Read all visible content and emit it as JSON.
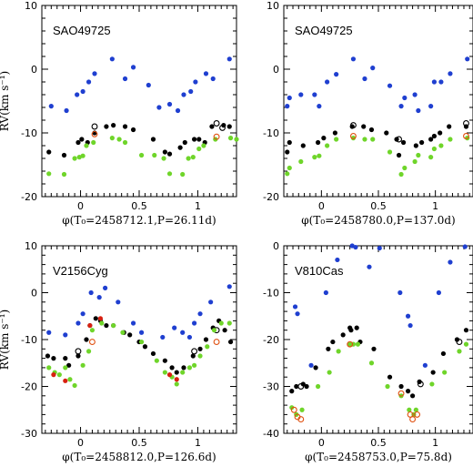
{
  "chart_data": [
    {
      "type": "scatter",
      "title": "SAO49725",
      "xlabel": "φ(T₀=2458712.1,P=26.11d)",
      "ylabel": "RV(km s⁻¹)",
      "xlim": [
        -0.33,
        1.33
      ],
      "ylim": [
        -20,
        10
      ],
      "xticks": [
        0,
        0.5,
        1
      ],
      "yticks": [
        -20,
        -10,
        0,
        10
      ],
      "series": [
        {
          "marker": "filled",
          "color": "#1f3fd0",
          "x": [
            -0.25,
            -0.12,
            -0.03,
            0.02,
            0.07,
            0.12,
            0.27,
            0.38,
            0.45,
            0.58,
            0.67,
            0.76,
            0.83,
            0.88,
            0.94,
            0.98,
            1.07,
            1.13,
            1.27
          ],
          "y": [
            -5.8,
            -6.5,
            -4,
            -3.5,
            -2,
            -0.7,
            1.6,
            -1.5,
            0.3,
            -2.5,
            -6,
            -5.5,
            -6.5,
            -4,
            -3.5,
            -2,
            -0.7,
            -1.5,
            1.6
          ]
        },
        {
          "marker": "filled",
          "color": "#000000",
          "x": [
            -0.27,
            -0.14,
            -0.02,
            0.01,
            0.06,
            0.12,
            0.22,
            0.28,
            0.38,
            0.45,
            0.62,
            0.72,
            0.76,
            0.85,
            0.89,
            0.97,
            1.01,
            1.06,
            1.12,
            1.22,
            1.27
          ],
          "y": [
            -13,
            -13.5,
            -11.5,
            -11,
            -11.5,
            -10,
            -9,
            -8.8,
            -9,
            -9.5,
            -11,
            -13,
            -13.3,
            -12.3,
            -11.5,
            -11,
            -11,
            -11.5,
            -9,
            -8.8,
            -9
          ]
        },
        {
          "marker": "open",
          "color": "#000000",
          "x": [
            0.12,
            1.16,
            1.21
          ],
          "y": [
            -9,
            -8.5,
            -9.2
          ]
        },
        {
          "marker": "filled",
          "color": "#6fd52a",
          "x": [
            -0.27,
            -0.14,
            -0.05,
            -0.01,
            0.02,
            0.05,
            0.11,
            0.27,
            0.33,
            0.38,
            0.52,
            0.63,
            0.71,
            0.76,
            0.87,
            0.92,
            0.96,
            1.01,
            1.05,
            1.15,
            1.28,
            1.33
          ],
          "y": [
            -16.4,
            -16.5,
            -14,
            -13.8,
            -13.6,
            -12,
            -11.5,
            -10.8,
            -11,
            -11.5,
            -13.5,
            -13.5,
            -14,
            -16.4,
            -16.5,
            -14,
            -13.8,
            -12.5,
            -12,
            -11,
            -10.8,
            -11
          ]
        },
        {
          "marker": "open",
          "color": "#e05010",
          "x": [
            0.12,
            1.16
          ],
          "y": [
            -10.2,
            -10.6
          ]
        }
      ]
    },
    {
      "type": "scatter",
      "title": "SAO49725",
      "xlabel": "φ(T₀=2458780.0,P=137.0d)",
      "ylabel": "",
      "xlim": [
        -0.33,
        1.33
      ],
      "ylim": [
        -20,
        10
      ],
      "xticks": [
        0,
        0.5,
        1
      ],
      "yticks": [
        -20,
        -10,
        0,
        10
      ],
      "series": [
        {
          "marker": "filled",
          "color": "#1f3fd0",
          "x": [
            -0.3,
            -0.28,
            -0.18,
            -0.06,
            -0.02,
            0.05,
            0.13,
            0.28,
            0.38,
            0.45,
            0.6,
            0.7,
            0.73,
            0.82,
            0.85,
            0.96,
            0.99,
            1.05,
            1.13,
            1.28
          ],
          "y": [
            -5.8,
            -4.5,
            -4,
            -4,
            -5.8,
            -2,
            -0.8,
            1.6,
            -1.5,
            0.2,
            -2.6,
            -5.8,
            -4.5,
            -4,
            -6.5,
            -5.8,
            -2,
            -2,
            -0.7,
            1.6
          ]
        },
        {
          "marker": "filled",
          "color": "#000000",
          "x": [
            -0.3,
            -0.28,
            -0.16,
            -0.03,
            0.02,
            0.12,
            0.27,
            0.37,
            0.44,
            0.57,
            0.66,
            0.68,
            0.72,
            0.83,
            0.88,
            0.96,
            0.99,
            1.04,
            1.12,
            1.27
          ],
          "y": [
            -13,
            -11.5,
            -12,
            -11.5,
            -10.8,
            -10,
            -9,
            -9,
            -9.5,
            -10,
            -11,
            -13.5,
            -11.5,
            -12,
            -11.5,
            -11,
            -10.5,
            -10,
            -9,
            -9
          ]
        },
        {
          "marker": "open",
          "color": "#000000",
          "x": [
            0.28,
            0.68,
            1.27
          ],
          "y": [
            -8.8,
            -11,
            -8.5
          ]
        },
        {
          "marker": "filled",
          "color": "#6fd52a",
          "x": [
            -0.3,
            -0.28,
            -0.18,
            -0.06,
            -0.02,
            0.05,
            0.13,
            0.28,
            0.38,
            0.45,
            0.6,
            0.7,
            0.73,
            0.82,
            0.85,
            0.96,
            0.99,
            1.05,
            1.13,
            1.28
          ],
          "y": [
            -16.4,
            -15.5,
            -14.5,
            -13.8,
            -13.6,
            -12,
            -11,
            -10.8,
            -11,
            -11,
            -13,
            -16.5,
            -15.5,
            -14.5,
            -13.5,
            -13.8,
            -12.5,
            -12,
            -11,
            -10.8
          ]
        },
        {
          "marker": "open",
          "color": "#e05010",
          "x": [
            0.28,
            1.27
          ],
          "y": [
            -10.5,
            -10.5
          ]
        }
      ]
    },
    {
      "type": "scatter",
      "title": "V2156Cyg",
      "xlabel": "φ(T₀=2458812.0,P=126.6d)",
      "ylabel": "RV(km s⁻¹)",
      "xlim": [
        -0.33,
        1.33
      ],
      "ylim": [
        -30,
        10
      ],
      "xticks": [
        0,
        0.5,
        1
      ],
      "yticks": [
        -30,
        -20,
        -10,
        0,
        10
      ],
      "series": [
        {
          "marker": "filled",
          "color": "#1f3fd0",
          "x": [
            -0.27,
            -0.13,
            -0.02,
            0.02,
            0.09,
            0.16,
            0.21,
            0.32,
            0.45,
            0.52,
            0.7,
            0.8,
            0.87,
            0.93,
            0.97,
            1.02,
            1.11,
            1.27
          ],
          "y": [
            -8.5,
            -9,
            -6.5,
            -4.5,
            0,
            -1,
            1,
            -2,
            -6.5,
            -8.5,
            -9.5,
            -7.5,
            -8.5,
            -9.5,
            -6.5,
            -4.5,
            -2,
            1.3
          ]
        },
        {
          "marker": "filled",
          "color": "#000000",
          "x": [
            -0.28,
            -0.23,
            -0.13,
            -0.1,
            -0.02,
            0.05,
            0.08,
            0.13,
            0.17,
            0.22,
            0.28,
            0.37,
            0.42,
            0.5,
            0.55,
            0.62,
            0.72,
            0.78,
            0.82,
            0.88,
            0.96,
            1.02,
            1.07,
            1.13,
            1.18,
            1.23,
            1.28
          ],
          "y": [
            -13.5,
            -14,
            -14,
            -15.5,
            -13.5,
            -10,
            -7,
            -5.5,
            -6,
            -7,
            -7,
            -8.5,
            -9,
            -10.5,
            -11.5,
            -13,
            -14.5,
            -16,
            -17,
            -16,
            -13.5,
            -12,
            -10,
            -7.5,
            -6,
            -8,
            -10.5
          ]
        },
        {
          "marker": "open",
          "color": "#000000",
          "x": [
            -0.02,
            0.97,
            1.16
          ],
          "y": [
            -12.5,
            -12.5,
            -8
          ]
        },
        {
          "marker": "filled",
          "color": "#6fd52a",
          "x": [
            -0.27,
            -0.22,
            -0.18,
            -0.13,
            -0.09,
            -0.05,
            0.02,
            0.07,
            0.1,
            0.18,
            0.28,
            0.36,
            0.52,
            0.65,
            0.72,
            0.78,
            0.82,
            0.87,
            0.93,
            0.97,
            1.02,
            1.08,
            1.14,
            1.2,
            1.27
          ],
          "y": [
            -16,
            -17,
            -17.5,
            -16,
            -18.5,
            -19.8,
            -15.5,
            -12.5,
            -8,
            -6.5,
            -7,
            -8.5,
            -10.5,
            -14.5,
            -17,
            -18,
            -19.5,
            -17,
            -16,
            -15.5,
            -13.5,
            -11.5,
            -8,
            -6.5,
            -6.5
          ]
        },
        {
          "marker": "filled",
          "color": "#d82010",
          "x": [
            -0.23,
            -0.13,
            0.08,
            0.17,
            0.76,
            0.82
          ],
          "y": [
            -17.5,
            -18.8,
            -7,
            -5.5,
            -17.5,
            -18.5
          ]
        },
        {
          "marker": "open",
          "color": "#e05010",
          "x": [
            0.1,
            1.16
          ],
          "y": [
            -10.5,
            -10.5
          ]
        }
      ]
    },
    {
      "type": "scatter",
      "title": "V810Cas",
      "xlabel": "φ(T₀=2458753.0,P=75.8d)",
      "ylabel": "",
      "xlim": [
        -0.33,
        1.33
      ],
      "ylim": [
        -40,
        0
      ],
      "xticks": [
        0,
        0.5,
        1
      ],
      "yticks": [
        -40,
        -30,
        -20,
        -10,
        0
      ],
      "series": [
        {
          "marker": "filled",
          "color": "#1f3fd0",
          "x": [
            -0.23,
            -0.21,
            -0.09,
            0.04,
            0.14,
            0.27,
            0.3,
            0.42,
            0.51,
            0.69,
            0.76,
            0.78,
            0.91,
            1.03,
            1.13,
            1.26
          ],
          "y": [
            -13,
            -14.5,
            -25.5,
            -10,
            -3,
            0,
            -0.3,
            -4.5,
            -0.5,
            -10,
            -15,
            -17,
            -25.5,
            -10,
            -3.5,
            -0.2
          ]
        },
        {
          "marker": "filled",
          "color": "#000000",
          "x": [
            -0.26,
            -0.22,
            -0.16,
            -0.13,
            -0.05,
            0.06,
            0.1,
            0.19,
            0.25,
            0.26,
            0.31,
            0.34,
            0.46,
            0.6,
            0.7,
            0.76,
            0.8,
            0.86,
            0.98,
            1.07,
            1.19,
            1.27
          ],
          "y": [
            -31,
            -30,
            -29.5,
            -30,
            -26,
            -22,
            -20.5,
            -19,
            -17.5,
            -18,
            -17.5,
            -20.5,
            -22,
            -28,
            -30,
            -31,
            -32,
            -29,
            -27,
            -23,
            -20,
            -18
          ]
        },
        {
          "marker": "open",
          "color": "#000000",
          "x": [
            -0.18,
            0.87,
            1.21
          ],
          "y": [
            -30,
            -29.5,
            -20.5
          ]
        },
        {
          "marker": "filled",
          "color": "#6fd52a",
          "x": [
            -0.26,
            -0.22,
            -0.17,
            -0.03,
            0.07,
            0.15,
            0.25,
            0.28,
            0.32,
            0.44,
            0.58,
            0.7,
            0.77,
            0.81,
            0.83,
            0.97,
            1.08,
            1.21,
            1.27
          ],
          "y": [
            -34.5,
            -36,
            -35,
            -30,
            -27,
            -22.5,
            -21,
            -21,
            -21,
            -25,
            -30,
            -32,
            -35,
            -36,
            -35,
            -29.5,
            -27,
            -22.5,
            -21
          ]
        },
        {
          "marker": "open",
          "color": "#e05010",
          "x": [
            -0.24,
            -0.21,
            -0.18,
            0.25,
            0.7,
            0.78,
            0.8,
            0.84
          ],
          "y": [
            -35,
            -36.5,
            -37,
            -21,
            -31.5,
            -36,
            -37,
            -36
          ]
        }
      ]
    }
  ]
}
